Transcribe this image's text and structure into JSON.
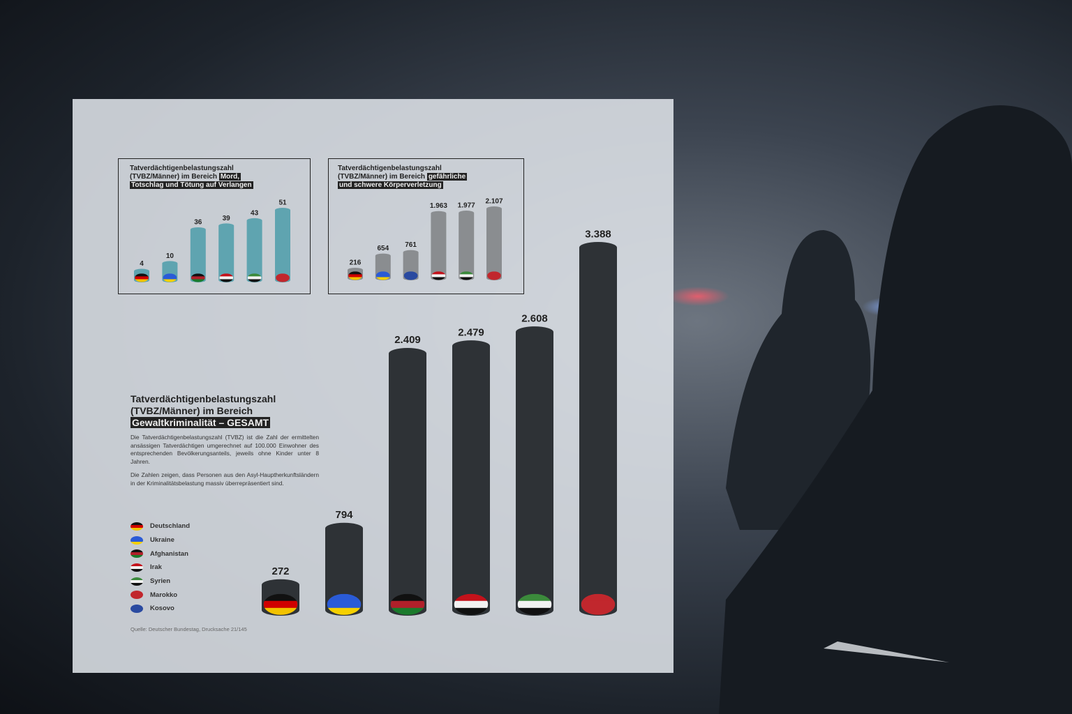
{
  "colors": {
    "bar_main": "#2e3236",
    "bar_mord": "#5fa4b0",
    "bar_koerper": "#8a8d90",
    "highlight": "#222222"
  },
  "flags": {
    "Deutschland": [
      "#111111",
      "#d00000",
      "#f2c200"
    ],
    "Ukraine": [
      "#2a5bd7",
      "#2a5bd7",
      "#f5d000"
    ],
    "Afghanistan": [
      "#111111",
      "#b0202a",
      "#1a7a2c"
    ],
    "Irak": [
      "#c4121b",
      "#f2f2f2",
      "#111111"
    ],
    "Syrien": [
      "#3b8a3b",
      "#f2f2f2",
      "#111111"
    ],
    "Marokko": [
      "#c1272d",
      "#c1272d",
      "#c1272d"
    ],
    "Kosovo": [
      "#2a4aa0",
      "#2a4aa0",
      "#2a4aa0"
    ]
  },
  "chart_data": [
    {
      "type": "bar",
      "title_plain": "Tatverdächtigenbelastungszahl (TVBZ/Männer) im Bereich",
      "title_highlight_1": "Mord,",
      "title_highlight_2": "Totschlag und Tötung auf Verlangen",
      "categories": [
        "Deutschland",
        "Ukraine",
        "Afghanistan",
        "Irak",
        "Syrien",
        "Marokko"
      ],
      "values": [
        4,
        10,
        36,
        39,
        43,
        51
      ],
      "labels": [
        "4",
        "10",
        "36",
        "39",
        "43",
        "51"
      ]
    },
    {
      "type": "bar",
      "title_plain": "Tatverdächtigenbelastungszahl (TVBZ/Männer) im Bereich",
      "title_highlight_1": "gefährliche",
      "title_highlight_2": "und schwere Körperverletzung",
      "categories": [
        "Deutschland",
        "Ukraine",
        "Kosovo",
        "Irak",
        "Syrien",
        "Marokko"
      ],
      "values": [
        216,
        654,
        761,
        1963,
        1977,
        2107
      ],
      "labels": [
        "216",
        "654",
        "761",
        "1.963",
        "1.977",
        "2.107"
      ]
    },
    {
      "type": "bar",
      "title_line1": "Tatverdächtigenbelastungszahl",
      "title_line2": "(TVBZ/Männer) im Bereich",
      "title_highlight": "Gewaltkriminalität – GESAMT",
      "categories": [
        "Deutschland",
        "Ukraine",
        "Afghanistan",
        "Irak",
        "Syrien",
        "Marokko"
      ],
      "values": [
        272,
        794,
        2409,
        2479,
        2608,
        3388
      ],
      "labels": [
        "272",
        "794",
        "2.409",
        "2.479",
        "2.608",
        "3.388"
      ]
    }
  ],
  "description": {
    "p1": "Die Tatverdächtigenbelastungszahl (TVBZ) ist die Zahl der ermittelten ansässigen Tatverdächtigen umgerechnet auf 100.000 Einwohner des entsprechenden Bevölkerungsanteils, jeweils ohne Kinder unter 8 Jahren.",
    "p2": "Die Zahlen zeigen, dass Personen aus den Asyl-Hauptherkunftsländern in der Kriminalitätsbelastung massiv überrepräsentiert sind."
  },
  "legend": [
    "Deutschland",
    "Ukraine",
    "Afghanistan",
    "Irak",
    "Syrien",
    "Marokko",
    "Kosovo"
  ],
  "source": "Quelle: Deutscher Bundestag, Drucksache 21/145"
}
